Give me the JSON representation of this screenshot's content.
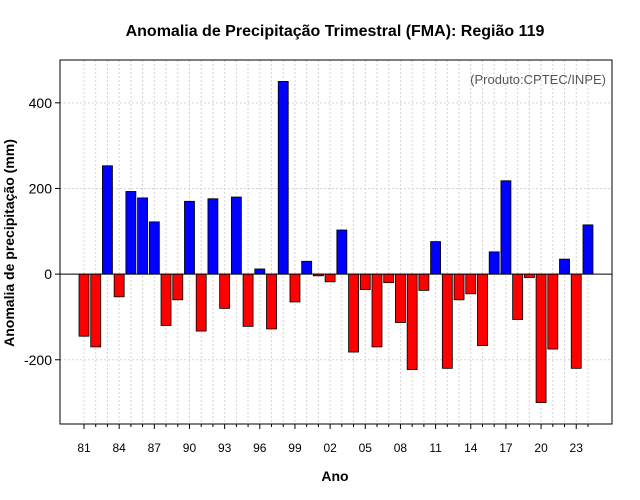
{
  "chart_data": {
    "type": "bar",
    "title": "Anomalia de Precipitação Trimestral (FMA): Região 119",
    "xlabel": "Ano",
    "ylabel": "Anomalia de precipitação (mm)",
    "annotation": "(Produto:CPTEC/INPE)",
    "ylim": [
      -350,
      500
    ],
    "yticks": [
      -200,
      0,
      200,
      400
    ],
    "xtick_labels": [
      "81",
      "84",
      "87",
      "90",
      "93",
      "96",
      "99",
      "02",
      "05",
      "08",
      "11",
      "14",
      "17",
      "20",
      "23"
    ],
    "categories": [
      "1981",
      "1982",
      "1983",
      "1984",
      "1985",
      "1986",
      "1987",
      "1988",
      "1989",
      "1990",
      "1991",
      "1992",
      "1993",
      "1994",
      "1995",
      "1996",
      "1997",
      "1998",
      "1999",
      "2000",
      "2001",
      "2002",
      "2003",
      "2004",
      "2005",
      "2006",
      "2007",
      "2008",
      "2009",
      "2010",
      "2011",
      "2012",
      "2013",
      "2014",
      "2015",
      "2016",
      "2017",
      "2018",
      "2019",
      "2020",
      "2021",
      "2022",
      "2023",
      "2024"
    ],
    "values": [
      -145,
      -170,
      253,
      -53,
      193,
      178,
      122,
      -120,
      -60,
      170,
      -133,
      176,
      -80,
      180,
      -122,
      12,
      -128,
      450,
      -65,
      30,
      -4,
      -18,
      103,
      -182,
      -36,
      -170,
      -20,
      -113,
      -223,
      -38,
      76,
      -220,
      -60,
      -46,
      -167,
      52,
      218,
      -106,
      -8,
      -300,
      -175,
      35,
      -220,
      115
    ],
    "grid": true,
    "colors": {
      "positive": "#0000ff",
      "negative": "#ff0000",
      "bar_edge": "#000000",
      "zero_line": "#000000"
    }
  }
}
